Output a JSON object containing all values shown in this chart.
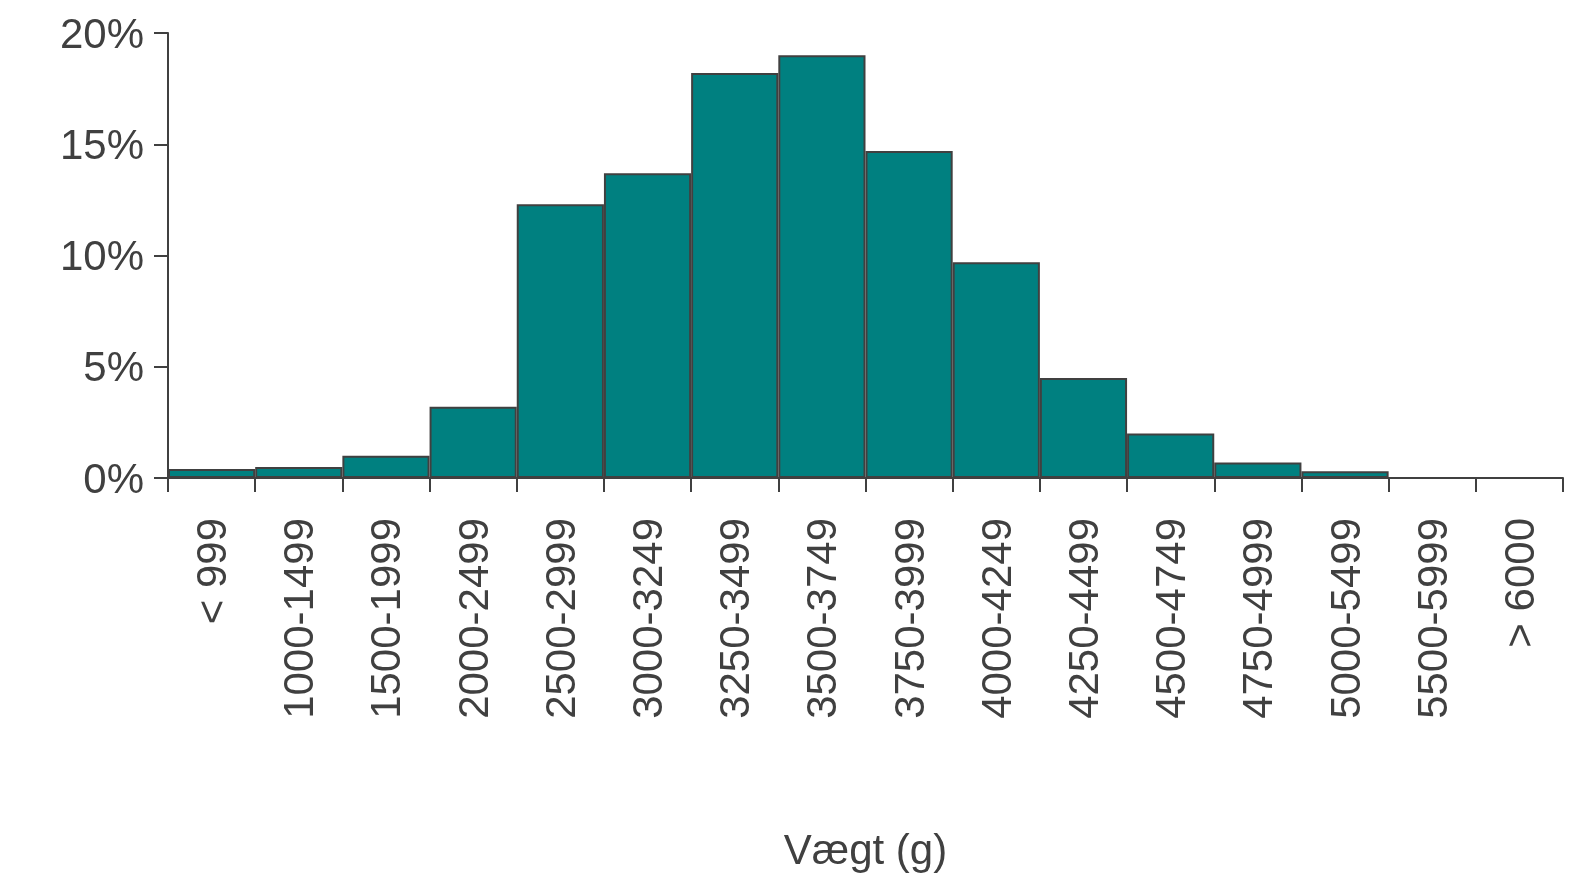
{
  "chart_data": {
    "type": "bar",
    "xlabel": "Vægt (g)",
    "categories": [
      "< 999",
      "1000-1499",
      "1500-1999",
      "2000-2499",
      "2500-2999",
      "3000-3249",
      "3250-3499",
      "3500-3749",
      "3750-3999",
      "4000-4249",
      "4250-4499",
      "4500-4749",
      "4750-4999",
      "5000-5499",
      "5500-5999",
      "> 6000"
    ],
    "values": [
      0.4,
      0.5,
      1.0,
      3.2,
      12.3,
      13.7,
      18.2,
      19.0,
      14.7,
      9.7,
      4.5,
      2.0,
      0.7,
      0.3,
      0,
      0
    ],
    "color": "#008080",
    "ylim": [
      0,
      20
    ],
    "yticks": [
      {
        "value": 0,
        "label": "0%"
      },
      {
        "value": 5,
        "label": "5%"
      },
      {
        "value": 10,
        "label": "10%"
      },
      {
        "value": 15,
        "label": "15%"
      },
      {
        "value": 20,
        "label": "20%"
      }
    ]
  }
}
